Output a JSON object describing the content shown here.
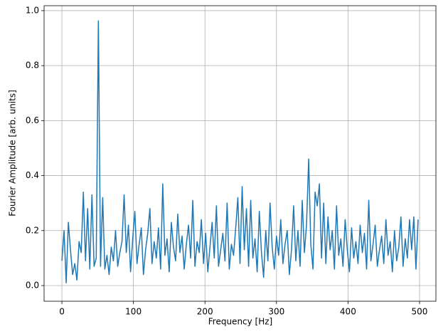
{
  "chart_data": {
    "type": "line",
    "xlabel": "Frequency [Hz]",
    "ylabel": "Fourier Amplitude [arb. units]",
    "x": [
      0,
      3,
      6,
      9,
      12,
      15,
      18,
      21,
      24,
      27,
      30,
      33,
      36,
      39,
      42,
      45,
      48,
      51,
      54,
      57,
      60,
      63,
      66,
      69,
      72,
      75,
      78,
      81,
      84,
      87,
      90,
      93,
      96,
      99,
      102,
      105,
      108,
      111,
      114,
      117,
      120,
      123,
      126,
      129,
      132,
      135,
      138,
      141,
      144,
      147,
      150,
      153,
      156,
      159,
      162,
      165,
      168,
      171,
      174,
      177,
      180,
      183,
      186,
      189,
      192,
      195,
      198,
      201,
      204,
      207,
      210,
      213,
      216,
      219,
      222,
      225,
      228,
      231,
      234,
      237,
      240,
      243,
      246,
      249,
      252,
      255,
      258,
      261,
      264,
      267,
      270,
      273,
      276,
      279,
      282,
      285,
      288,
      291,
      294,
      297,
      300,
      303,
      306,
      309,
      312,
      315,
      318,
      321,
      324,
      327,
      330,
      333,
      336,
      339,
      342,
      345,
      348,
      351,
      354,
      357,
      360,
      363,
      366,
      369,
      372,
      375,
      378,
      381,
      384,
      387,
      390,
      393,
      396,
      399,
      402,
      405,
      408,
      411,
      414,
      417,
      420,
      423,
      426,
      429,
      432,
      435,
      438,
      441,
      444,
      447,
      450,
      453,
      456,
      459,
      462,
      465,
      468,
      471,
      474,
      477,
      480,
      483,
      486,
      489,
      492,
      495,
      498
    ],
    "values": [
      0.09,
      0.2,
      0.01,
      0.23,
      0.13,
      0.04,
      0.08,
      0.02,
      0.16,
      0.12,
      0.34,
      0.09,
      0.28,
      0.06,
      0.33,
      0.07,
      0.1,
      0.963,
      0.07,
      0.32,
      0.06,
      0.11,
      0.04,
      0.14,
      0.09,
      0.2,
      0.07,
      0.12,
      0.16,
      0.33,
      0.12,
      0.22,
      0.05,
      0.17,
      0.27,
      0.08,
      0.15,
      0.21,
      0.04,
      0.13,
      0.19,
      0.28,
      0.08,
      0.16,
      0.1,
      0.21,
      0.06,
      0.37,
      0.11,
      0.17,
      0.05,
      0.23,
      0.14,
      0.09,
      0.26,
      0.12,
      0.18,
      0.06,
      0.15,
      0.22,
      0.1,
      0.31,
      0.07,
      0.16,
      0.12,
      0.24,
      0.08,
      0.19,
      0.05,
      0.14,
      0.23,
      0.1,
      0.29,
      0.07,
      0.13,
      0.19,
      0.09,
      0.3,
      0.06,
      0.15,
      0.11,
      0.21,
      0.32,
      0.08,
      0.36,
      0.13,
      0.28,
      0.07,
      0.31,
      0.1,
      0.17,
      0.05,
      0.27,
      0.12,
      0.03,
      0.2,
      0.09,
      0.3,
      0.14,
      0.06,
      0.18,
      0.11,
      0.24,
      0.08,
      0.15,
      0.2,
      0.04,
      0.13,
      0.29,
      0.09,
      0.2,
      0.07,
      0.31,
      0.12,
      0.22,
      0.46,
      0.15,
      0.06,
      0.34,
      0.29,
      0.37,
      0.1,
      0.3,
      0.08,
      0.25,
      0.13,
      0.2,
      0.06,
      0.29,
      0.11,
      0.17,
      0.07,
      0.24,
      0.13,
      0.05,
      0.21,
      0.1,
      0.16,
      0.08,
      0.22,
      0.12,
      0.19,
      0.06,
      0.31,
      0.09,
      0.15,
      0.22,
      0.07,
      0.13,
      0.18,
      0.08,
      0.24,
      0.11,
      0.16,
      0.05,
      0.2,
      0.09,
      0.14,
      0.25,
      0.07,
      0.17,
      0.1,
      0.24,
      0.13,
      0.25,
      0.06,
      0.24
    ],
    "color": "#1f77b4",
    "xlim": [
      -24.9,
      522.9
    ],
    "xticks": [
      0,
      100,
      200,
      300,
      400,
      500
    ],
    "ylim": [
      -0.057,
      1.018
    ],
    "yticks": [
      {
        "value": 0,
        "label": "0.0"
      },
      0.2,
      0.4,
      0.6,
      0.8,
      {
        "value": 1,
        "label": "1.0"
      }
    ],
    "grid": true
  }
}
